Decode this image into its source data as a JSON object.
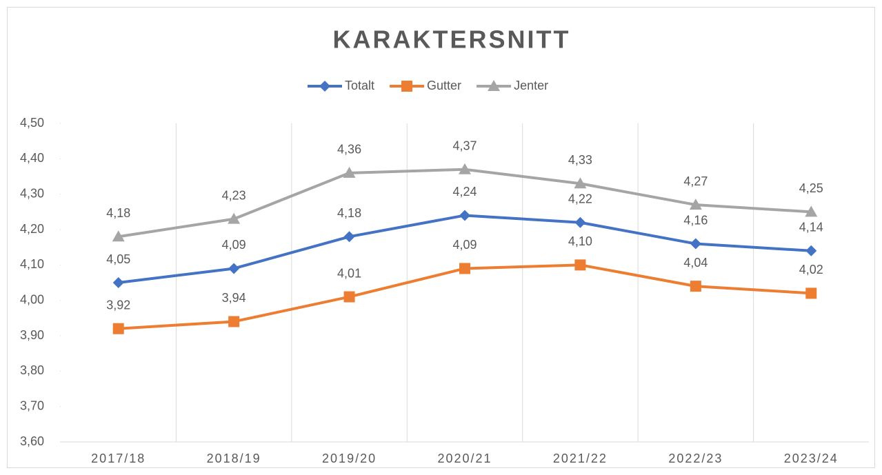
{
  "chart_data": {
    "type": "line",
    "title": "KARAKTERSNITT",
    "categories": [
      "2017/18",
      "2018/19",
      "2019/20",
      "2020/21",
      "2021/22",
      "2022/23",
      "2023/24"
    ],
    "series": [
      {
        "name": "Totalt",
        "color": "#4472c4",
        "marker": "diamond",
        "values": [
          4.05,
          4.09,
          4.18,
          4.24,
          4.22,
          4.16,
          4.14
        ],
        "value_labels": [
          "4,05",
          "4,09",
          "4,18",
          "4,24",
          "4,22",
          "4,16",
          "4,14"
        ]
      },
      {
        "name": "Gutter",
        "color": "#ed7d31",
        "marker": "square",
        "values": [
          3.92,
          3.94,
          4.01,
          4.09,
          4.1,
          4.04,
          4.02
        ],
        "value_labels": [
          "3,92",
          "3,94",
          "4,01",
          "4,09",
          "4,10",
          "4,04",
          "4,02"
        ]
      },
      {
        "name": "Jenter",
        "color": "#a5a5a5",
        "marker": "triangle",
        "values": [
          4.18,
          4.23,
          4.36,
          4.37,
          4.33,
          4.27,
          4.25
        ],
        "value_labels": [
          "4,18",
          "4,23",
          "4,36",
          "4,37",
          "4,33",
          "4,27",
          "4,25"
        ]
      }
    ],
    "ylim": [
      3.6,
      4.5
    ],
    "yticks": [
      {
        "value": 3.6,
        "label": "3,60"
      },
      {
        "value": 3.7,
        "label": "3,70"
      },
      {
        "value": 3.8,
        "label": "3,80"
      },
      {
        "value": 3.9,
        "label": "3,90"
      },
      {
        "value": 4.0,
        "label": "4,00"
      },
      {
        "value": 4.1,
        "label": "4,10"
      },
      {
        "value": 4.2,
        "label": "4,20"
      },
      {
        "value": 4.3,
        "label": "4,30"
      },
      {
        "value": 4.4,
        "label": "4,40"
      },
      {
        "value": 4.5,
        "label": "4,50"
      }
    ],
    "legend": "top",
    "grid": "x"
  }
}
